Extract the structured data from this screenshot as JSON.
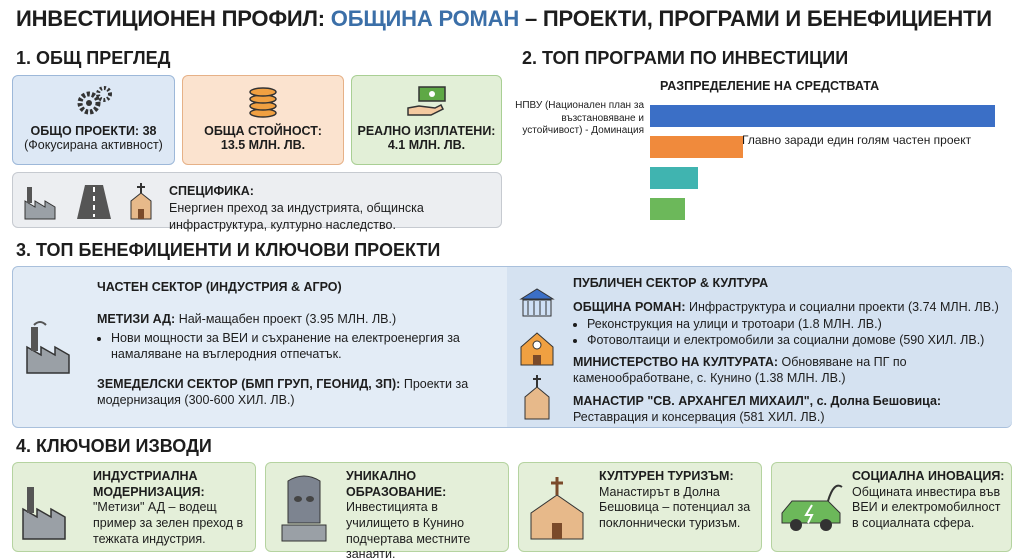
{
  "header": {
    "title_start": "ИНВЕСТИЦИОНЕН ПРОФИЛ: ",
    "title_highlight": "ОБЩИНА РОМАН",
    "title_end": " – ПРОЕКТИ, ПРОГРАМИ И БЕНЕФИЦИЕНТИ"
  },
  "overview": {
    "heading": "1. ОБЩ ПРЕГЛЕД",
    "cards": [
      {
        "label": "ОБЩО ПРОЕКТИ: 38",
        "value": "(Фокусирана активност)"
      },
      {
        "label": "ОБЩА СТОЙНОСТ:",
        "value": "13.5 МЛН. ЛВ."
      },
      {
        "label": "РЕАЛНО ИЗПЛАТЕНИ:",
        "value": "4.1 МЛН. ЛВ."
      }
    ],
    "specifics": {
      "label": "СПЕЦИФИКА:",
      "text": "Енергиен преход за индустрията, общинска инфраструктура, културно наследство."
    }
  },
  "programs": {
    "heading": "2. ТОП ПРОГРАМИ ПО ИНВЕСТИЦИИ",
    "chart_data": {
      "type": "bar",
      "orientation": "horizontal",
      "title": "РАЗПРЕДЕЛЕНИЕ НА СРЕДСТВАТА",
      "categories": [
        "НПВУ (Национален план за възстановяване и устойчивост) - Доминация",
        null,
        null,
        null
      ],
      "values": [
        100,
        27,
        14,
        10
      ],
      "colors": [
        "#3b6fc6",
        "#f08a3c",
        "#40b4b0",
        "#6cb85a"
      ],
      "annotation": "Главно заради един голям частен проект"
    }
  },
  "beneficiaries": {
    "heading": "3. ТОП БЕНЕФИЦИЕНТИ И КЛЮЧОВИ ПРОЕКТИ",
    "private": {
      "title": "ЧАСТЕН СЕКТОР (ИНДУСТРИЯ & АГРО)",
      "items": [
        {
          "name": "МЕТИЗИ АД:",
          "text": "Най-мащабен проект (3.95 МЛН. ЛВ.)",
          "bullets": [
            "Нови мощности за ВЕИ и съхранение на електроенергия за намаляване на въглеродния отпечатък."
          ]
        },
        {
          "name": "ЗЕМЕДЕЛСКИ СЕКТОР (БМП ГРУП, ГЕОНИД, ЗП):",
          "text": "Проекти за модернизация (300-600 ХИЛ. ЛВ.)"
        }
      ]
    },
    "public": {
      "title": "ПУБЛИЧЕН СЕКТОР & КУЛТУРА",
      "items": [
        {
          "name": "ОБЩИНА РОМАН:",
          "text": "Инфраструктура и социални проекти (3.74 МЛН. ЛВ.)",
          "bullets": [
            "Реконструкция на улици и тротоари (1.8 МЛН. ЛВ.)",
            "Фотоволтаици и електромобили за социални домове (590 ХИЛ. ЛВ.)"
          ]
        },
        {
          "name": "МИНИСТЕРСТВО НА КУЛТУРАТА:",
          "text": "Обновяване на ПГ по каменообработване, с. Кунино (1.38 МЛН. ЛВ.)"
        },
        {
          "name": "МАНАСТИР \"СВ. АРХАНГЕЛ МИХАИЛ\", с. Долна Бешовица:",
          "text": "Реставрация и консервация (581 ХИЛ. ЛВ.)"
        }
      ]
    }
  },
  "conclusions": {
    "heading": "4. КЛЮЧОВИ ИЗВОДИ",
    "cards": [
      {
        "title": "ИНДУСТРИАЛНА МОДЕРНИЗАЦИЯ:",
        "text": "\"Метизи\" АД – водещ пример за зелен преход в тежката индустрия."
      },
      {
        "title": "УНИКАЛНО ОБРАЗОВАНИЕ:",
        "text": "Инвестицията в училището в Кунино подчертава местните занаяти."
      },
      {
        "title": "КУЛТУРЕН ТУРИЗЪМ:",
        "text": "Манастирът в Долна Бешовица – потенциал за поклоннически туризъм."
      },
      {
        "title": "СОЦИАЛНА ИНОВАЦИЯ:",
        "text": "Общината инвестира във ВЕИ и електромобилност в социалната сфера."
      }
    ]
  }
}
